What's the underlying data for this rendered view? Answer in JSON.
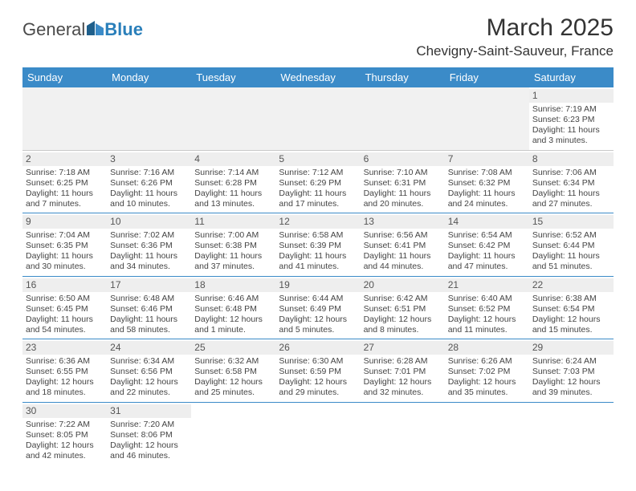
{
  "logo": {
    "text1": "General",
    "text2": "Blue"
  },
  "title": "March 2025",
  "location": "Chevigny-Saint-Sauveur, France",
  "colors": {
    "header_bg": "#3b8bc8",
    "header_text": "#ffffff",
    "row_border": "#3b8bc8",
    "daynum_bg": "#eeeeee",
    "empty_bg": "#f1f1f1"
  },
  "dayNames": [
    "Sunday",
    "Monday",
    "Tuesday",
    "Wednesday",
    "Thursday",
    "Friday",
    "Saturday"
  ],
  "weeks": [
    [
      null,
      null,
      null,
      null,
      null,
      null,
      {
        "n": "1",
        "sr": "7:19 AM",
        "ss": "6:23 PM",
        "dl": "11 hours and 3 minutes."
      }
    ],
    [
      {
        "n": "2",
        "sr": "7:18 AM",
        "ss": "6:25 PM",
        "dl": "11 hours and 7 minutes."
      },
      {
        "n": "3",
        "sr": "7:16 AM",
        "ss": "6:26 PM",
        "dl": "11 hours and 10 minutes."
      },
      {
        "n": "4",
        "sr": "7:14 AM",
        "ss": "6:28 PM",
        "dl": "11 hours and 13 minutes."
      },
      {
        "n": "5",
        "sr": "7:12 AM",
        "ss": "6:29 PM",
        "dl": "11 hours and 17 minutes."
      },
      {
        "n": "6",
        "sr": "7:10 AM",
        "ss": "6:31 PM",
        "dl": "11 hours and 20 minutes."
      },
      {
        "n": "7",
        "sr": "7:08 AM",
        "ss": "6:32 PM",
        "dl": "11 hours and 24 minutes."
      },
      {
        "n": "8",
        "sr": "7:06 AM",
        "ss": "6:34 PM",
        "dl": "11 hours and 27 minutes."
      }
    ],
    [
      {
        "n": "9",
        "sr": "7:04 AM",
        "ss": "6:35 PM",
        "dl": "11 hours and 30 minutes."
      },
      {
        "n": "10",
        "sr": "7:02 AM",
        "ss": "6:36 PM",
        "dl": "11 hours and 34 minutes."
      },
      {
        "n": "11",
        "sr": "7:00 AM",
        "ss": "6:38 PM",
        "dl": "11 hours and 37 minutes."
      },
      {
        "n": "12",
        "sr": "6:58 AM",
        "ss": "6:39 PM",
        "dl": "11 hours and 41 minutes."
      },
      {
        "n": "13",
        "sr": "6:56 AM",
        "ss": "6:41 PM",
        "dl": "11 hours and 44 minutes."
      },
      {
        "n": "14",
        "sr": "6:54 AM",
        "ss": "6:42 PM",
        "dl": "11 hours and 47 minutes."
      },
      {
        "n": "15",
        "sr": "6:52 AM",
        "ss": "6:44 PM",
        "dl": "11 hours and 51 minutes."
      }
    ],
    [
      {
        "n": "16",
        "sr": "6:50 AM",
        "ss": "6:45 PM",
        "dl": "11 hours and 54 minutes."
      },
      {
        "n": "17",
        "sr": "6:48 AM",
        "ss": "6:46 PM",
        "dl": "11 hours and 58 minutes."
      },
      {
        "n": "18",
        "sr": "6:46 AM",
        "ss": "6:48 PM",
        "dl": "12 hours and 1 minute."
      },
      {
        "n": "19",
        "sr": "6:44 AM",
        "ss": "6:49 PM",
        "dl": "12 hours and 5 minutes."
      },
      {
        "n": "20",
        "sr": "6:42 AM",
        "ss": "6:51 PM",
        "dl": "12 hours and 8 minutes."
      },
      {
        "n": "21",
        "sr": "6:40 AM",
        "ss": "6:52 PM",
        "dl": "12 hours and 11 minutes."
      },
      {
        "n": "22",
        "sr": "6:38 AM",
        "ss": "6:54 PM",
        "dl": "12 hours and 15 minutes."
      }
    ],
    [
      {
        "n": "23",
        "sr": "6:36 AM",
        "ss": "6:55 PM",
        "dl": "12 hours and 18 minutes."
      },
      {
        "n": "24",
        "sr": "6:34 AM",
        "ss": "6:56 PM",
        "dl": "12 hours and 22 minutes."
      },
      {
        "n": "25",
        "sr": "6:32 AM",
        "ss": "6:58 PM",
        "dl": "12 hours and 25 minutes."
      },
      {
        "n": "26",
        "sr": "6:30 AM",
        "ss": "6:59 PM",
        "dl": "12 hours and 29 minutes."
      },
      {
        "n": "27",
        "sr": "6:28 AM",
        "ss": "7:01 PM",
        "dl": "12 hours and 32 minutes."
      },
      {
        "n": "28",
        "sr": "6:26 AM",
        "ss": "7:02 PM",
        "dl": "12 hours and 35 minutes."
      },
      {
        "n": "29",
        "sr": "6:24 AM",
        "ss": "7:03 PM",
        "dl": "12 hours and 39 minutes."
      }
    ],
    [
      {
        "n": "30",
        "sr": "7:22 AM",
        "ss": "8:05 PM",
        "dl": "12 hours and 42 minutes."
      },
      {
        "n": "31",
        "sr": "7:20 AM",
        "ss": "8:06 PM",
        "dl": "12 hours and 46 minutes."
      },
      null,
      null,
      null,
      null,
      null
    ]
  ],
  "labels": {
    "sunrise": "Sunrise: ",
    "sunset": "Sunset: ",
    "daylight": "Daylight: "
  }
}
